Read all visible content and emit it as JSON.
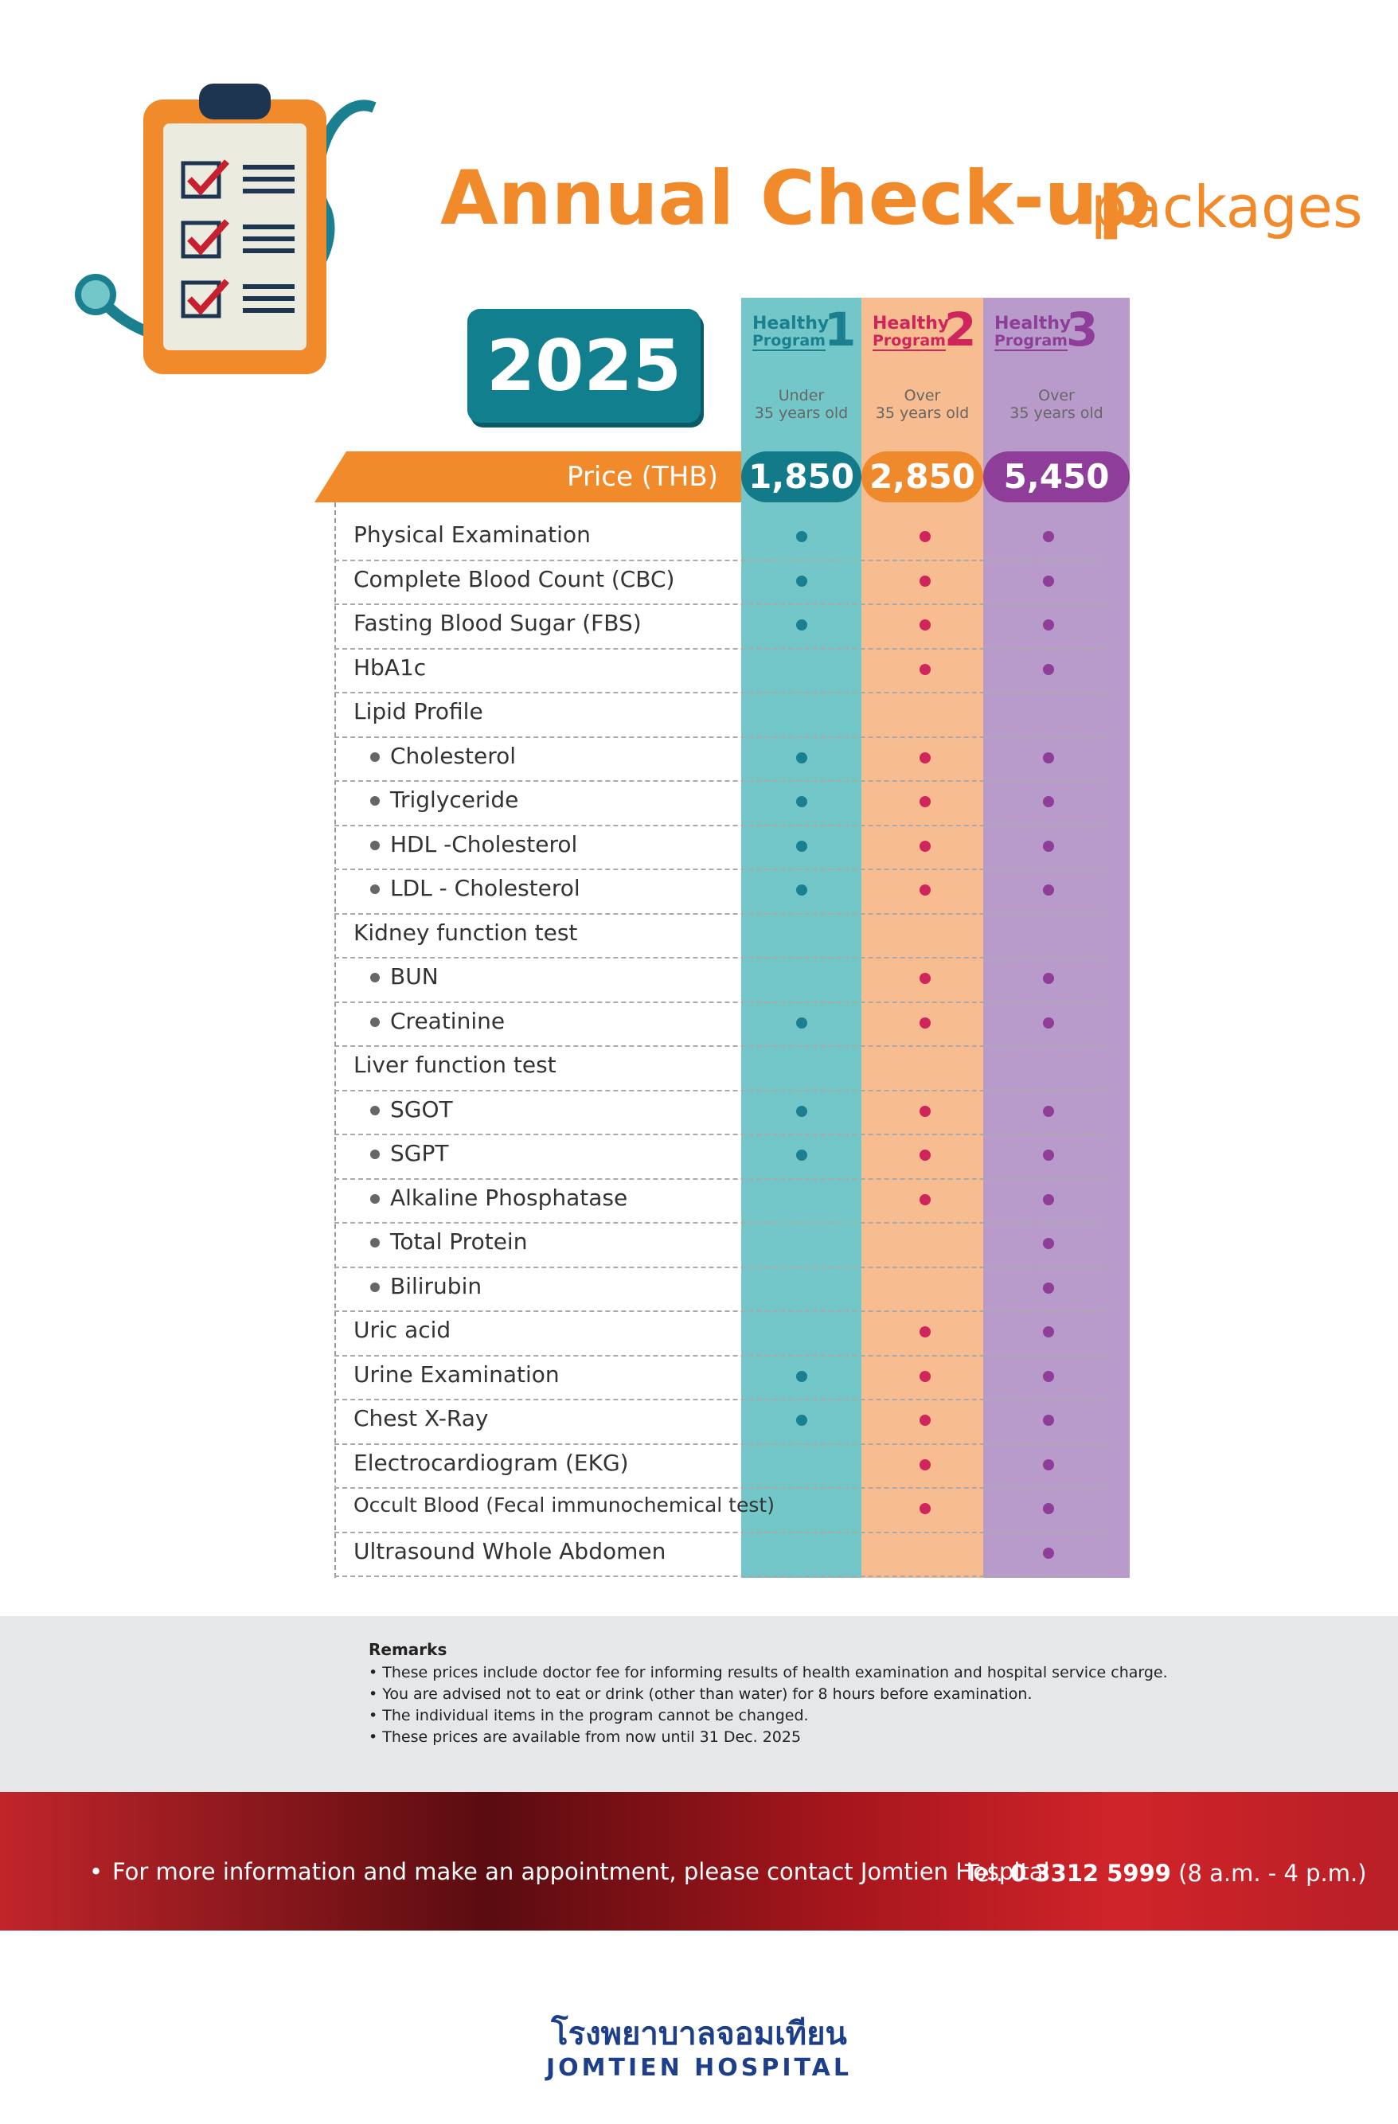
{
  "header": {
    "title_main": "Annual Check-up",
    "title_sub": "packages",
    "year": "2025"
  },
  "price_label": "Price (THB)",
  "programs": [
    {
      "name_top": "Healthy",
      "name_bottom": "Program",
      "number": "1",
      "age": [
        "Under",
        "35 years old"
      ],
      "price": "1,850",
      "color": "#1a8090",
      "bg": "#74c7c9",
      "pill": "#137a89"
    },
    {
      "name_top": "Healthy",
      "name_bottom": "Program",
      "number": "2",
      "age": [
        "Over",
        "35 years old"
      ],
      "price": "2,850",
      "color": "#d0245c",
      "bg": "#f7bc8f",
      "pill": "#ef8a2c"
    },
    {
      "name_top": "Healthy",
      "name_bottom": "Program",
      "number": "3",
      "age": [
        "Over",
        "35 years old"
      ],
      "price": "5,450",
      "color": "#8e3e98",
      "bg": "#b89bca",
      "pill": "#8e3e98"
    }
  ],
  "rows": [
    {
      "item": "Physical Examination",
      "sub": false,
      "included": [
        true,
        true,
        true
      ]
    },
    {
      "item": "Complete Blood Count (CBC)",
      "sub": false,
      "included": [
        true,
        true,
        true
      ]
    },
    {
      "item": "Fasting Blood Sugar (FBS)",
      "sub": false,
      "included": [
        true,
        true,
        true
      ]
    },
    {
      "item": "HbA1c",
      "sub": false,
      "included": [
        false,
        true,
        true
      ]
    },
    {
      "item": "Lipid Profile",
      "sub": false,
      "included": [
        false,
        false,
        false
      ]
    },
    {
      "item": "Cholesterol",
      "sub": true,
      "included": [
        true,
        true,
        true
      ]
    },
    {
      "item": "Triglyceride",
      "sub": true,
      "included": [
        true,
        true,
        true
      ]
    },
    {
      "item": "HDL -Cholesterol",
      "sub": true,
      "included": [
        true,
        true,
        true
      ]
    },
    {
      "item": "LDL - Cholesterol",
      "sub": true,
      "included": [
        true,
        true,
        true
      ]
    },
    {
      "item": "Kidney function test",
      "sub": false,
      "included": [
        false,
        false,
        false
      ]
    },
    {
      "item": "BUN",
      "sub": true,
      "included": [
        false,
        true,
        true
      ]
    },
    {
      "item": "Creatinine",
      "sub": true,
      "included": [
        true,
        true,
        true
      ]
    },
    {
      "item": "Liver function test",
      "sub": false,
      "included": [
        false,
        false,
        false
      ]
    },
    {
      "item": "SGOT",
      "sub": true,
      "included": [
        true,
        true,
        true
      ]
    },
    {
      "item": "SGPT",
      "sub": true,
      "included": [
        true,
        true,
        true
      ]
    },
    {
      "item": "Alkaline Phosphatase",
      "sub": true,
      "included": [
        false,
        true,
        true
      ]
    },
    {
      "item": "Total Protein",
      "sub": true,
      "included": [
        false,
        false,
        true
      ]
    },
    {
      "item": "Bilirubin",
      "sub": true,
      "included": [
        false,
        false,
        true
      ]
    },
    {
      "item": "Uric acid",
      "sub": false,
      "included": [
        false,
        true,
        true
      ]
    },
    {
      "item": "Urine Examination",
      "sub": false,
      "included": [
        true,
        true,
        true
      ]
    },
    {
      "item": "Chest X-Ray",
      "sub": false,
      "included": [
        true,
        true,
        true
      ]
    },
    {
      "item": "Electrocardiogram (EKG)",
      "sub": false,
      "included": [
        false,
        true,
        true
      ]
    },
    {
      "item": "Occult Blood (Fecal immunochemical test)",
      "sub": false,
      "included": [
        false,
        true,
        true
      ]
    },
    {
      "item": "Ultrasound Whole Abdomen",
      "sub": false,
      "included": [
        false,
        false,
        true
      ]
    }
  ],
  "remarks": {
    "title": "Remarks",
    "items": [
      "These prices include doctor fee for informing results of health examination and hospital service charge.",
      "You are advised not to eat or drink (other than water) for 8  hours before examination.",
      "The individual items in the program cannot be changed.",
      "These prices are available from now until 31 Dec. 2025"
    ]
  },
  "contact": {
    "text": "For more information and make an appointment, please contact Jomtien Hospital",
    "tel_label": "Tel.",
    "tel": "0 3312 5999",
    "hours": "(8 a.m. - 4 p.m.)"
  },
  "logo": {
    "thai": "โรงพยาบาลจอมเทียน",
    "english": "JOMTIEN HOSPITAL"
  }
}
